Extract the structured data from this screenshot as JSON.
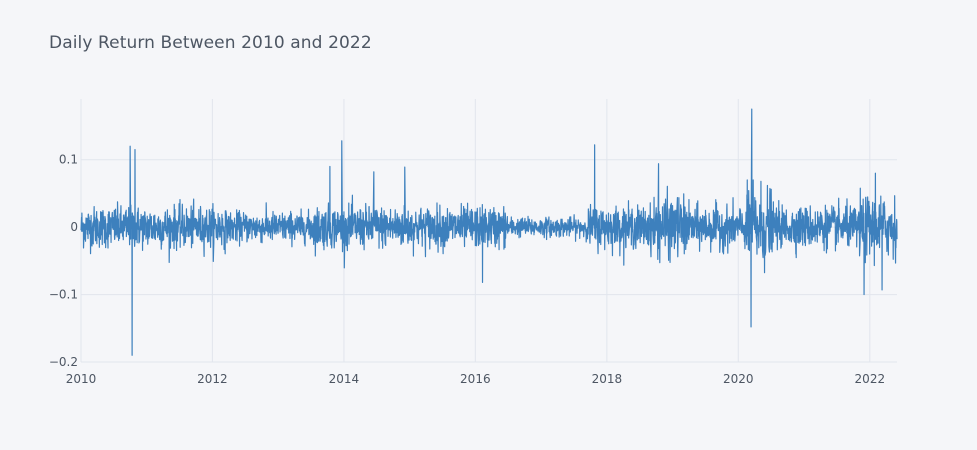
{
  "chart_data": {
    "type": "line",
    "title": "Daily Return Between 2010 and 2022",
    "xlabel": "",
    "ylabel": "",
    "xlim": [
      "2010-01-01",
      "2022-06-01"
    ],
    "ylim": [
      -0.2,
      0.19
    ],
    "x_ticks": [
      "2010",
      "2012",
      "2014",
      "2016",
      "2018",
      "2020",
      "2022"
    ],
    "y_ticks": [
      {
        "value": 0.1,
        "label": "0.1"
      },
      {
        "value": 0,
        "label": "0"
      },
      {
        "value": -0.1,
        "label": "−0.1"
      },
      {
        "value": -0.2,
        "label": "−0.2"
      }
    ],
    "grid": true,
    "legend": "none",
    "line_color": "#3d80bd",
    "background": "#f5f6f9",
    "notable_points": [
      {
        "x": "2010-10-01",
        "y": 0.12
      },
      {
        "x": "2010-10-12",
        "y": -0.19
      },
      {
        "x": "2010-10-28",
        "y": 0.115
      },
      {
        "x": "2013-10-15",
        "y": 0.09
      },
      {
        "x": "2013-12-20",
        "y": 0.128
      },
      {
        "x": "2014-06-15",
        "y": 0.082
      },
      {
        "x": "2014-12-05",
        "y": 0.089
      },
      {
        "x": "2016-02-10",
        "y": -0.082
      },
      {
        "x": "2017-10-25",
        "y": 0.122
      },
      {
        "x": "2018-10-15",
        "y": 0.094
      },
      {
        "x": "2020-03-16",
        "y": 0.175
      },
      {
        "x": "2020-03-12",
        "y": -0.148
      },
      {
        "x": "2021-11-30",
        "y": -0.1
      },
      {
        "x": "2022-02-01",
        "y": 0.08
      },
      {
        "x": "2022-03-10",
        "y": -0.093
      }
    ]
  }
}
